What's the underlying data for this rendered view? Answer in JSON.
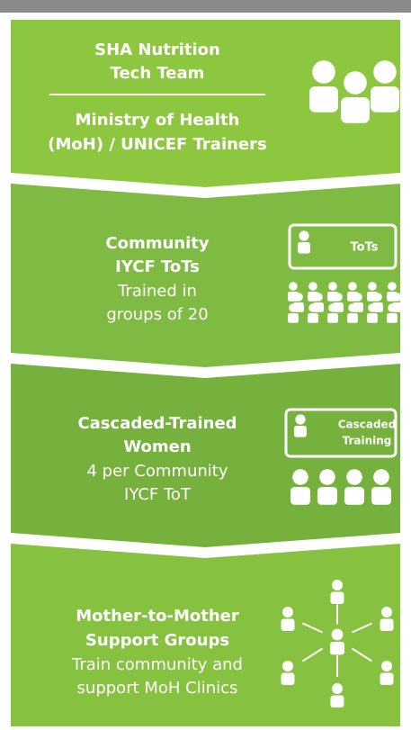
{
  "sections": [
    {
      "title": [
        "SHA Nutrition",
        "Tech Team"
      ],
      "subtitle": [
        "Ministry of Health",
        "(MoH) / UNICEF Trainers"
      ]
    },
    {
      "title": [
        "Community",
        "IYCF ToTs"
      ],
      "text": [
        "Trained in",
        "groups of 20"
      ],
      "icon_label": [
        "ToTs"
      ]
    },
    {
      "title": [
        "Cascaded-Trained",
        "Women"
      ],
      "text": [
        "4 per Community",
        "IYCF ToT"
      ],
      "icon_label": [
        "Cascaded",
        "Training"
      ]
    },
    {
      "title": [
        "Mother-to-Mother",
        "Support Groups"
      ],
      "text": [
        "Train community and",
        "support MoH Clinics"
      ]
    }
  ]
}
